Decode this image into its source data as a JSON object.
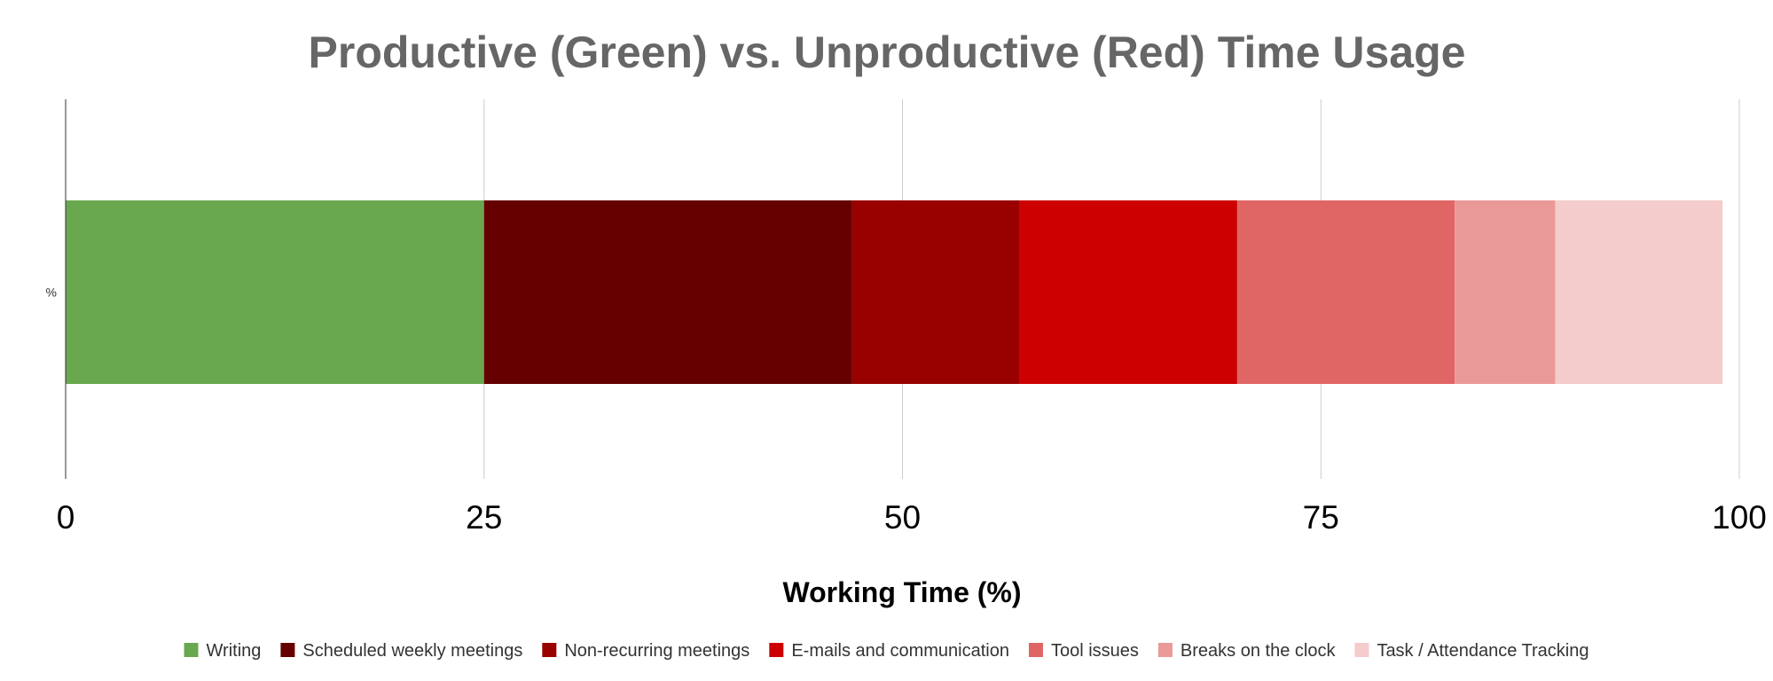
{
  "chart_data": {
    "type": "bar",
    "orientation": "horizontal-stacked",
    "title": "Productive (Green) vs. Unproductive (Red) Time Usage",
    "xlabel": "Working Time (%)",
    "ylabel": "",
    "categories": [
      "%"
    ],
    "xlim": [
      0,
      100
    ],
    "x_ticks": [
      "0",
      "25",
      "50",
      "75",
      "100"
    ],
    "grid": true,
    "legend_position": "bottom",
    "series": [
      {
        "name": "Writing",
        "values": [
          25
        ],
        "color": "#6aa84f"
      },
      {
        "name": "Scheduled weekly meetings",
        "values": [
          22
        ],
        "color": "#660000"
      },
      {
        "name": "Non-recurring meetings",
        "values": [
          10
        ],
        "color": "#990000"
      },
      {
        "name": "E-mails and communication",
        "values": [
          13
        ],
        "color": "#cc0000"
      },
      {
        "name": "Tool issues",
        "values": [
          13
        ],
        "color": "#e06666"
      },
      {
        "name": "Breaks on the clock",
        "values": [
          6
        ],
        "color": "#ea9999"
      },
      {
        "name": "Task / Attendance Tracking",
        "values": [
          10
        ],
        "color": "#f4cccc"
      }
    ]
  }
}
